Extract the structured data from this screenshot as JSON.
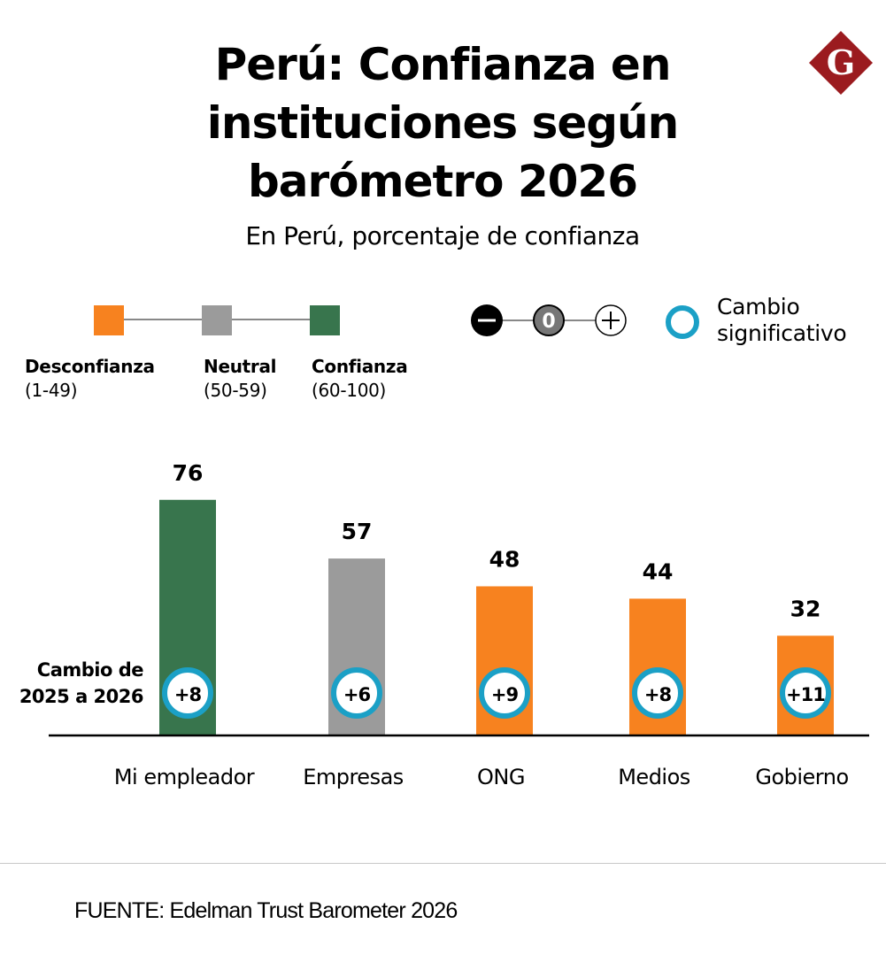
{
  "header": {
    "title_lines": [
      "Perú: Confianza en",
      "instituciones según",
      "barómetro 2026"
    ],
    "subtitle": "En Perú, porcentaje de confianza",
    "logo_letter": "G",
    "logo_color": "#9b1b1f"
  },
  "legend": {
    "categories": [
      {
        "name": "Desconfianza",
        "range": "(1-49)",
        "color": "#f7821f"
      },
      {
        "name": "Neutral",
        "range": "(50-59)",
        "color": "#9b9b9b"
      },
      {
        "name": "Confianza",
        "range": "(60-100)",
        "color": "#38754d"
      }
    ],
    "change_symbols": [
      "−",
      "0",
      "+"
    ],
    "significant_change_label_lines": [
      "Cambio",
      "significativo"
    ],
    "significant_change_color": "#1ba0c6"
  },
  "change_label_lines": [
    "Cambio de",
    "2025 a 2026"
  ],
  "source": "FUENTE: Edelman Trust Barometer 2026",
  "chart_data": {
    "type": "bar",
    "title": "Perú: Confianza en instituciones según barómetro 2026",
    "subtitle": "En Perú, porcentaje de confianza",
    "xlabel": "",
    "ylabel": "",
    "ylim": [
      0,
      100
    ],
    "grid": false,
    "categories": [
      "Mi empleador",
      "Empresas",
      "ONG",
      "Medios",
      "Gobierno"
    ],
    "values": [
      76,
      57,
      48,
      44,
      32
    ],
    "colors": [
      "#38754d",
      "#9b9b9b",
      "#f7821f",
      "#f7821f",
      "#f7821f"
    ],
    "changes": [
      "+8",
      "+6",
      "+9",
      "+8",
      "+11"
    ],
    "significant_change": [
      true,
      true,
      true,
      true,
      true
    ],
    "change_period": "Cambio de 2025 a 2026"
  }
}
